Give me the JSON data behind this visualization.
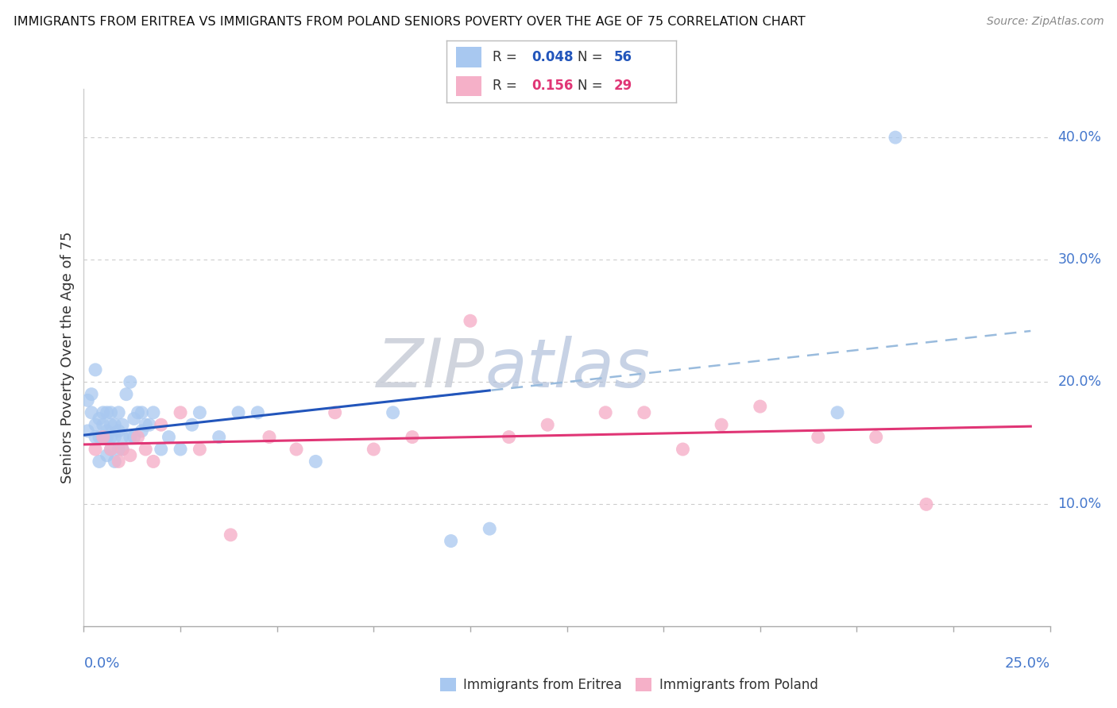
{
  "title": "IMMIGRANTS FROM ERITREA VS IMMIGRANTS FROM POLAND SENIORS POVERTY OVER THE AGE OF 75 CORRELATION CHART",
  "source": "Source: ZipAtlas.com",
  "ylabel": "Seniors Poverty Over the Age of 75",
  "legend_eritrea_R": "0.048",
  "legend_eritrea_N": "56",
  "legend_eritrea_label": "Immigrants from Eritrea",
  "legend_poland_R": "0.156",
  "legend_poland_N": "29",
  "legend_poland_label": "Immigrants from Poland",
  "eritrea_dot_color": "#a8c8f0",
  "poland_dot_color": "#f5b0c8",
  "eritrea_line_color": "#2255bb",
  "poland_line_color": "#e03575",
  "dashed_line_color": "#99bbdd",
  "xlim": [
    0.0,
    0.25
  ],
  "ylim": [
    0.0,
    0.44
  ],
  "ytick_vals": [
    0.1,
    0.2,
    0.3,
    0.4
  ],
  "ytick_labels": [
    "10.0%",
    "20.0%",
    "30.0%",
    "40.0%"
  ],
  "xtick_left_label": "0.0%",
  "xtick_right_label": "25.0%",
  "eritrea_x": [
    0.001,
    0.001,
    0.002,
    0.002,
    0.003,
    0.003,
    0.003,
    0.004,
    0.004,
    0.004,
    0.005,
    0.005,
    0.005,
    0.005,
    0.006,
    0.006,
    0.006,
    0.006,
    0.007,
    0.007,
    0.007,
    0.007,
    0.008,
    0.008,
    0.008,
    0.009,
    0.009,
    0.009,
    0.01,
    0.01,
    0.01,
    0.011,
    0.012,
    0.012,
    0.013,
    0.013,
    0.014,
    0.015,
    0.015,
    0.016,
    0.017,
    0.018,
    0.02,
    0.022,
    0.025,
    0.028,
    0.03,
    0.035,
    0.04,
    0.045,
    0.06,
    0.08,
    0.095,
    0.105,
    0.195,
    0.21
  ],
  "eritrea_y": [
    0.16,
    0.185,
    0.175,
    0.19,
    0.165,
    0.155,
    0.21,
    0.155,
    0.17,
    0.135,
    0.155,
    0.165,
    0.155,
    0.175,
    0.14,
    0.155,
    0.16,
    0.175,
    0.145,
    0.155,
    0.165,
    0.175,
    0.135,
    0.155,
    0.165,
    0.145,
    0.16,
    0.175,
    0.145,
    0.155,
    0.165,
    0.19,
    0.155,
    0.2,
    0.17,
    0.155,
    0.175,
    0.16,
    0.175,
    0.165,
    0.165,
    0.175,
    0.145,
    0.155,
    0.145,
    0.165,
    0.175,
    0.155,
    0.175,
    0.175,
    0.135,
    0.175,
    0.07,
    0.08,
    0.175,
    0.4
  ],
  "poland_x": [
    0.003,
    0.005,
    0.007,
    0.009,
    0.01,
    0.012,
    0.014,
    0.016,
    0.018,
    0.02,
    0.025,
    0.03,
    0.038,
    0.048,
    0.055,
    0.065,
    0.075,
    0.085,
    0.1,
    0.11,
    0.12,
    0.135,
    0.145,
    0.155,
    0.165,
    0.175,
    0.19,
    0.205,
    0.218
  ],
  "poland_y": [
    0.145,
    0.155,
    0.145,
    0.135,
    0.145,
    0.14,
    0.155,
    0.145,
    0.135,
    0.165,
    0.175,
    0.145,
    0.075,
    0.155,
    0.145,
    0.175,
    0.145,
    0.155,
    0.25,
    0.155,
    0.165,
    0.175,
    0.175,
    0.145,
    0.165,
    0.18,
    0.155,
    0.155,
    0.1
  ]
}
